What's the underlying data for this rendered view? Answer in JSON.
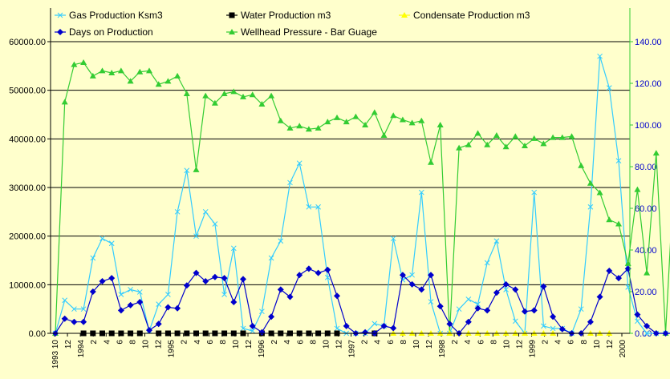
{
  "chart_data": {
    "type": "line",
    "legend": [
      {
        "name": "Gas Production Ksm3",
        "color": "#33CCFF",
        "marker": "x"
      },
      {
        "name": "Water Production m3",
        "color": "#000000",
        "marker": "square"
      },
      {
        "name": "Condensate Production m3",
        "color": "#FFFF00",
        "marker": "triangle"
      },
      {
        "name": "Days on Production",
        "color": "#0000CC",
        "marker": "diamond"
      },
      {
        "name": "Wellhead Pressure - Bar Guage",
        "color": "#33CC33",
        "marker": "triangle"
      }
    ],
    "y_left": {
      "min": 0,
      "max": 60000,
      "ticks": [
        "0.00",
        "10000.00",
        "20000.00",
        "30000.00",
        "40000.00",
        "50000.00",
        "60000.00"
      ]
    },
    "y_right": {
      "min": 0,
      "max": 140,
      "ticks": [
        "0.00",
        "20.00",
        "40.00",
        "60.00",
        "80.00",
        "100.00",
        "120.00",
        "140.00"
      ]
    },
    "x_ticks": [
      "1993 10",
      "12",
      "1994",
      "2",
      "4",
      "6",
      "8",
      "10",
      "12",
      "1995",
      "2",
      "4",
      "6",
      "8",
      "10",
      "12",
      "1996",
      "2",
      "4",
      "6",
      "8",
      "10",
      "12",
      "1997",
      "2",
      "4",
      "6",
      "8",
      "10",
      "12",
      "1998",
      "2",
      "4",
      "6",
      "8",
      "10",
      "12",
      "1999",
      "2",
      "4",
      "6",
      "8",
      "10",
      "12",
      "2000"
    ],
    "series": [
      {
        "name": "Gas Production Ksm3",
        "axis": "left",
        "color": "#33CCFF",
        "values": [
          0,
          6800,
          5000,
          5000,
          15500,
          19500,
          18500,
          8000,
          9000,
          8500,
          500,
          6000,
          8000,
          25000,
          33500,
          20000,
          25000,
          22500,
          8000,
          17500,
          1000,
          500,
          4500,
          15500,
          19000,
          31000,
          35000,
          26000,
          26000,
          11500,
          1000,
          0,
          0,
          0,
          2000,
          1500,
          19500,
          11000,
          12000,
          29000,
          6500,
          0,
          0,
          5000,
          7000,
          6000,
          14500,
          19000,
          9000,
          2500,
          0,
          29000,
          1500,
          1000,
          1000,
          0,
          5000,
          26000,
          57000,
          50500,
          35500,
          9500,
          2500,
          0,
          0,
          0,
          0,
          0,
          0,
          0
        ]
      },
      {
        "name": "Days on Production",
        "axis": "right",
        "color": "#0000CC",
        "values": [
          0,
          7,
          5.5,
          5.5,
          20,
          25,
          26.5,
          11,
          13.5,
          15,
          1.5,
          4.5,
          12.5,
          12,
          23,
          29,
          25,
          27,
          26.5,
          15,
          26,
          3.5,
          0.5,
          8,
          21,
          17.5,
          28,
          31,
          29,
          30.5,
          18,
          3.5,
          0,
          0.5,
          0,
          3.5,
          2.5,
          28,
          23.5,
          21,
          28,
          13,
          4.5,
          0,
          5.5,
          12,
          11,
          19.5,
          23.5,
          21,
          10.5,
          11,
          22.5,
          8,
          2,
          0,
          0,
          5.5,
          17.5,
          30,
          26.5,
          31,
          9,
          3.5,
          0,
          0,
          0,
          0.5,
          1,
          0
        ]
      },
      {
        "name": "Wellhead Pressure - Bar Guage",
        "axis": "right",
        "color": "#33CC33",
        "values": [
          0,
          111,
          129,
          130,
          123.5,
          126,
          125,
          126,
          121,
          125.5,
          126,
          119.5,
          121,
          123.5,
          115,
          78.5,
          114,
          110.5,
          115,
          116,
          113.5,
          114.5,
          110,
          114,
          102,
          98.5,
          99.5,
          98,
          98.5,
          101.5,
          103.5,
          101.5,
          104,
          100,
          106,
          95,
          104.5,
          102.5,
          101,
          102,
          82,
          100,
          0,
          89,
          90.5,
          96,
          90.5,
          95,
          89.5,
          94.5,
          90,
          93.5,
          91,
          94,
          94,
          94.5,
          80.5,
          72,
          67.5,
          54.5,
          52.5,
          33.5,
          69,
          29,
          86.5,
          0,
          84,
          83,
          0
        ]
      },
      {
        "name": "Water Production m3",
        "axis": "left",
        "color": "#000000",
        "values": [
          null,
          null,
          null,
          0,
          0,
          0,
          0,
          0,
          0,
          0,
          null,
          0,
          0,
          0,
          0,
          0,
          0,
          0,
          0,
          0,
          0,
          null,
          0,
          0,
          0,
          0,
          0,
          0,
          0,
          0,
          0,
          null,
          null,
          null,
          0,
          null
        ]
      },
      {
        "name": "Condensate Production m3",
        "axis": "left",
        "color": "#FFFF00",
        "values": [
          null,
          null,
          null,
          null,
          null,
          null,
          null,
          null,
          null,
          null,
          null,
          null,
          null,
          null,
          null,
          null,
          null,
          null,
          null,
          null,
          null,
          null,
          null,
          null,
          null,
          null,
          null,
          null,
          null,
          null,
          null,
          null,
          null,
          null,
          null,
          null,
          0,
          0,
          0,
          0,
          0,
          0,
          0,
          0,
          0,
          0,
          0,
          0,
          0,
          0,
          0,
          0,
          0,
          0,
          null,
          null,
          null,
          0,
          0,
          0
        ]
      }
    ]
  }
}
